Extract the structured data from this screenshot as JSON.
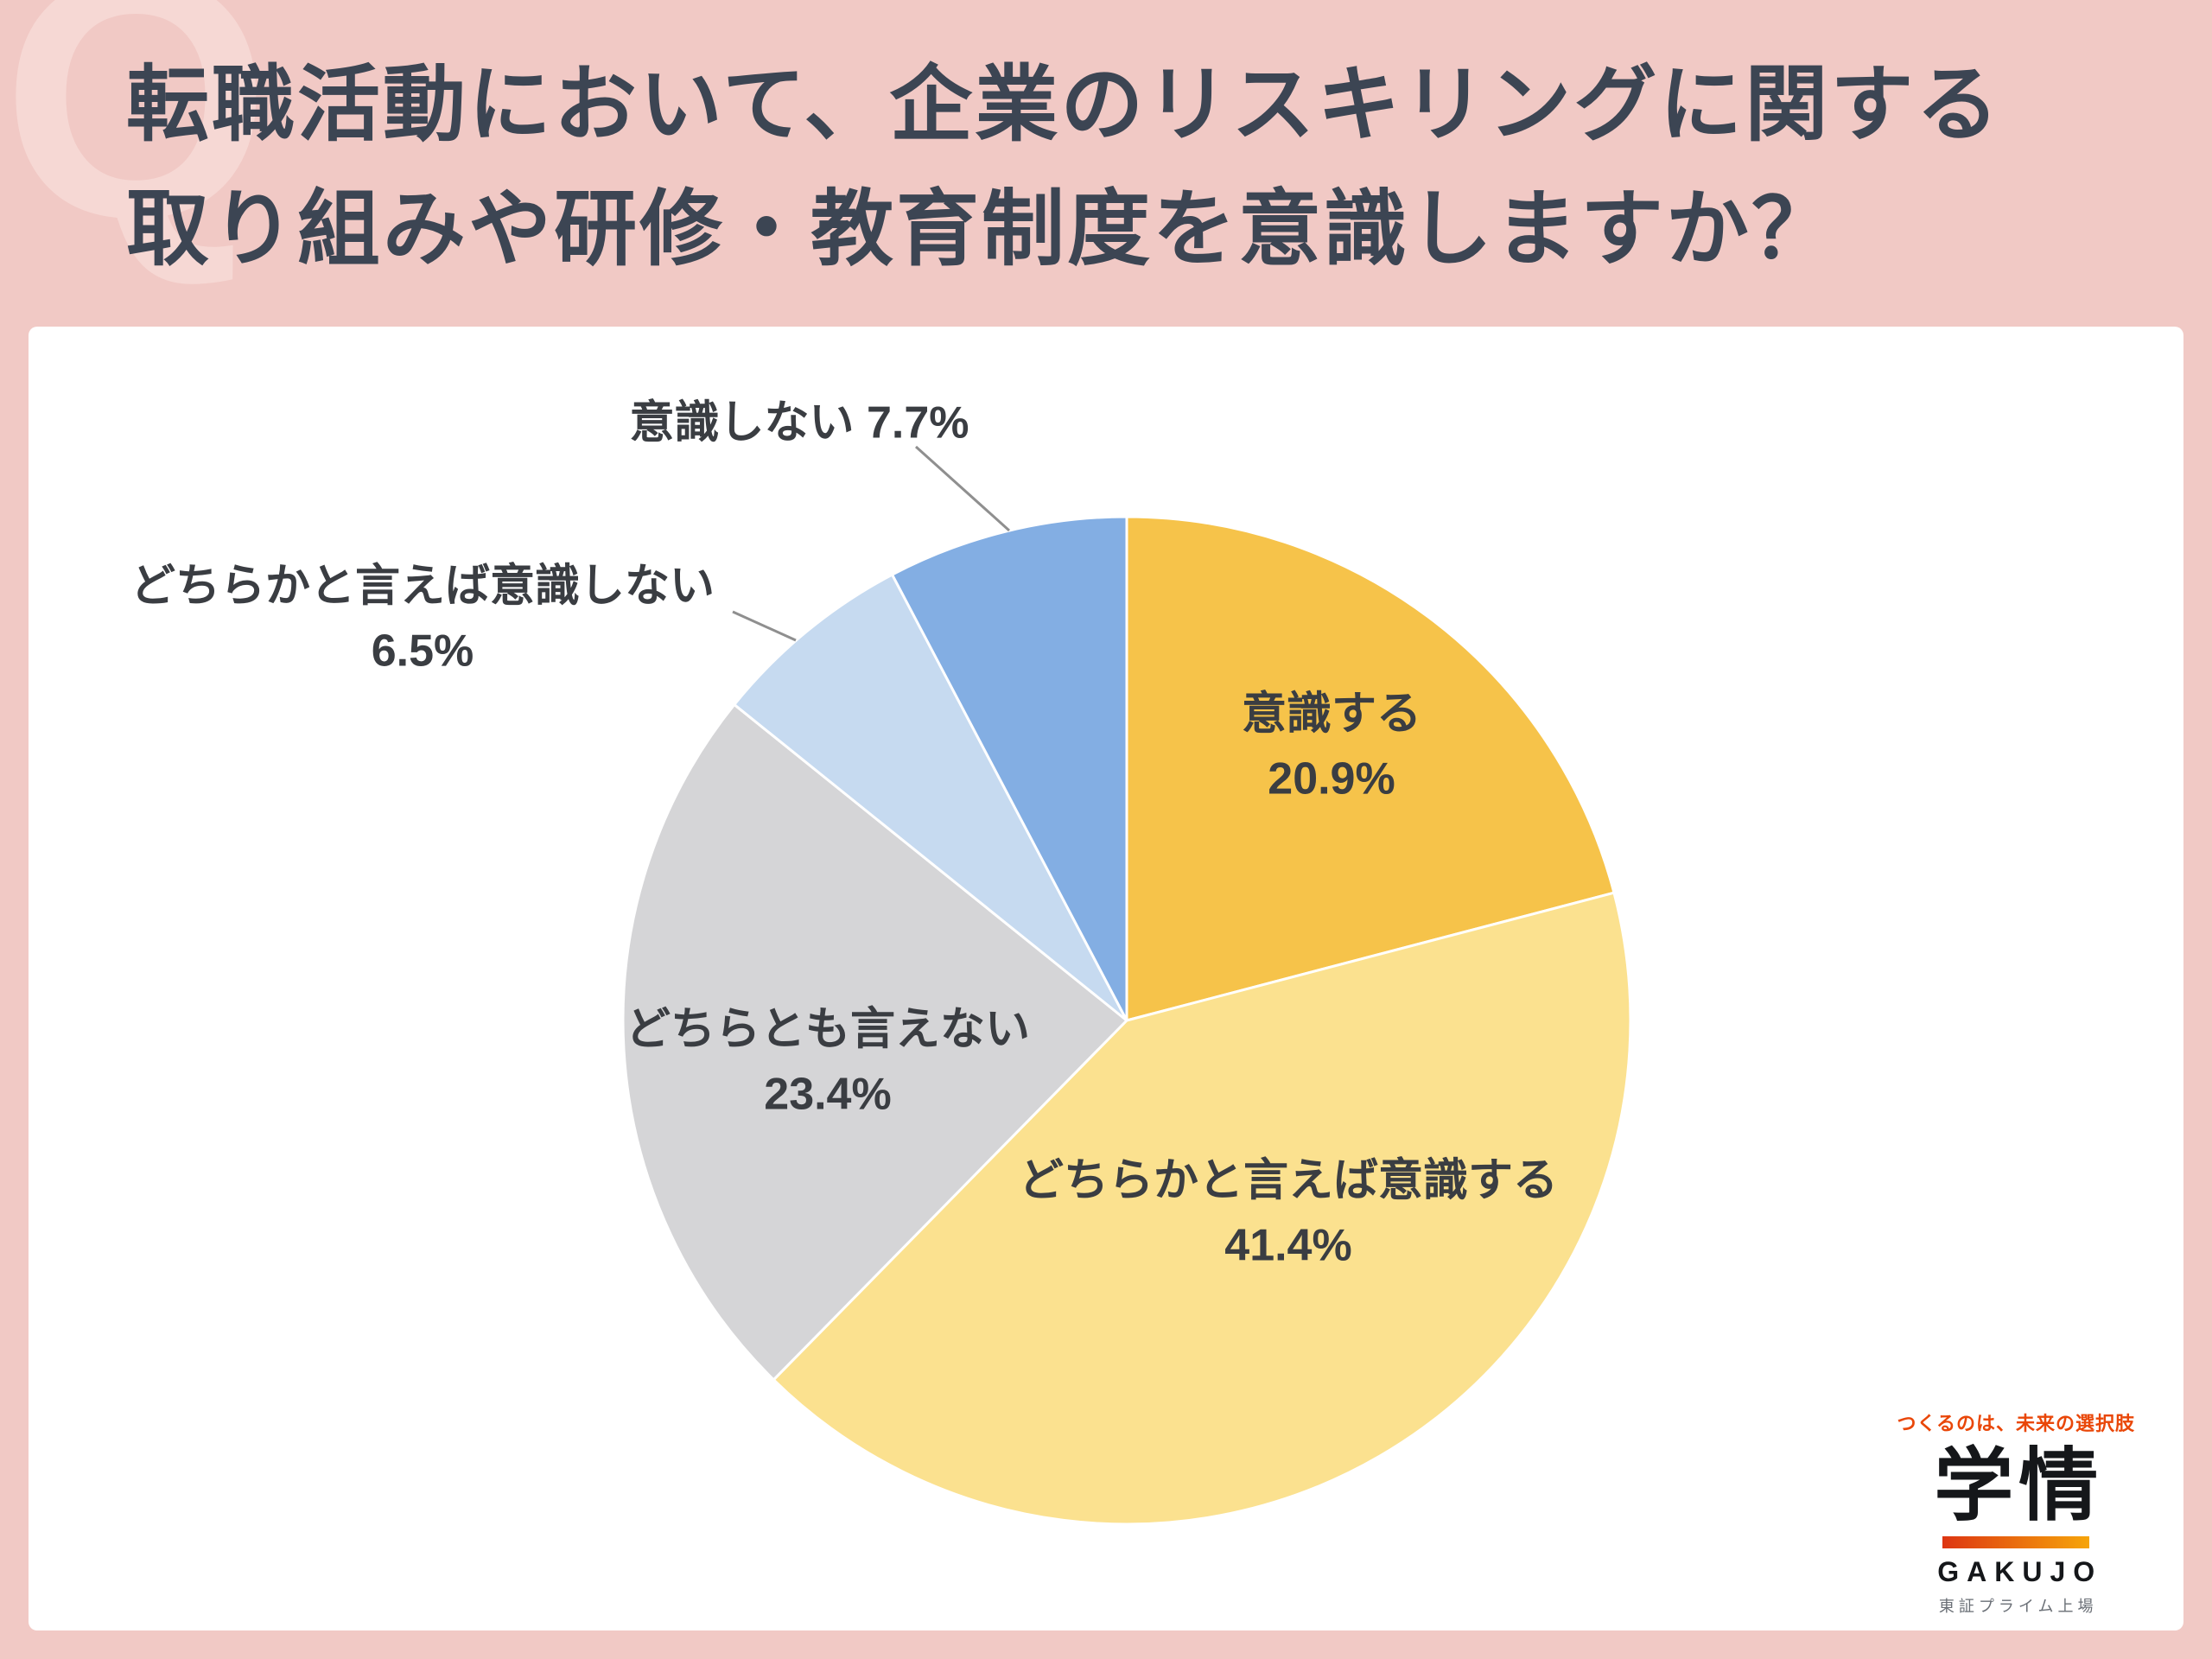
{
  "header": {
    "q_watermark": "Q",
    "title_lines": [
      "転職活動において、企業のリスキリングに関する",
      "取り組みや研修・教育制度を意識しますか？"
    ]
  },
  "chart_data": {
    "type": "pie",
    "title": "転職活動において、企業のリスキリングに関する取り組みや研修・教育制度を意識しますか？",
    "unit": "%",
    "start_angle_deg": 0,
    "direction": "clockwise",
    "total_shown": 99.9,
    "legend": "none",
    "slices": [
      {
        "label": "意識する",
        "value": 20.9,
        "color": "#f6c34a",
        "label_placement": "inside"
      },
      {
        "label": "どちらかと言えば意識する",
        "value": 41.4,
        "color": "#fbe18f",
        "label_placement": "inside"
      },
      {
        "label": "どちらとも言えない",
        "value": 23.4,
        "color": "#d5d5d7",
        "label_placement": "inside"
      },
      {
        "label": "どちらかと言えば意識しない",
        "value": 6.5,
        "color": "#c6daf0",
        "label_placement": "outside-left"
      },
      {
        "label": "意識しない",
        "value": 7.7,
        "color": "#83aee3",
        "label_placement": "outside-top"
      }
    ]
  },
  "logo": {
    "tagline": "つくるのは、未来の選択肢",
    "brand": "学情",
    "brand_en": "GAKUJO",
    "listing": "東証プライム上場",
    "tagline_color": "#e94709",
    "bar_gradient": [
      "#dd3512",
      "#f6a50a"
    ]
  },
  "theme": {
    "background": "#f1c9c5",
    "card_background": "#ffffff",
    "title_color": "#3c4553",
    "label_color": "#3a3d42",
    "watermark_color": "#f6d8d4",
    "leader_line_color": "#8f8f8f"
  }
}
